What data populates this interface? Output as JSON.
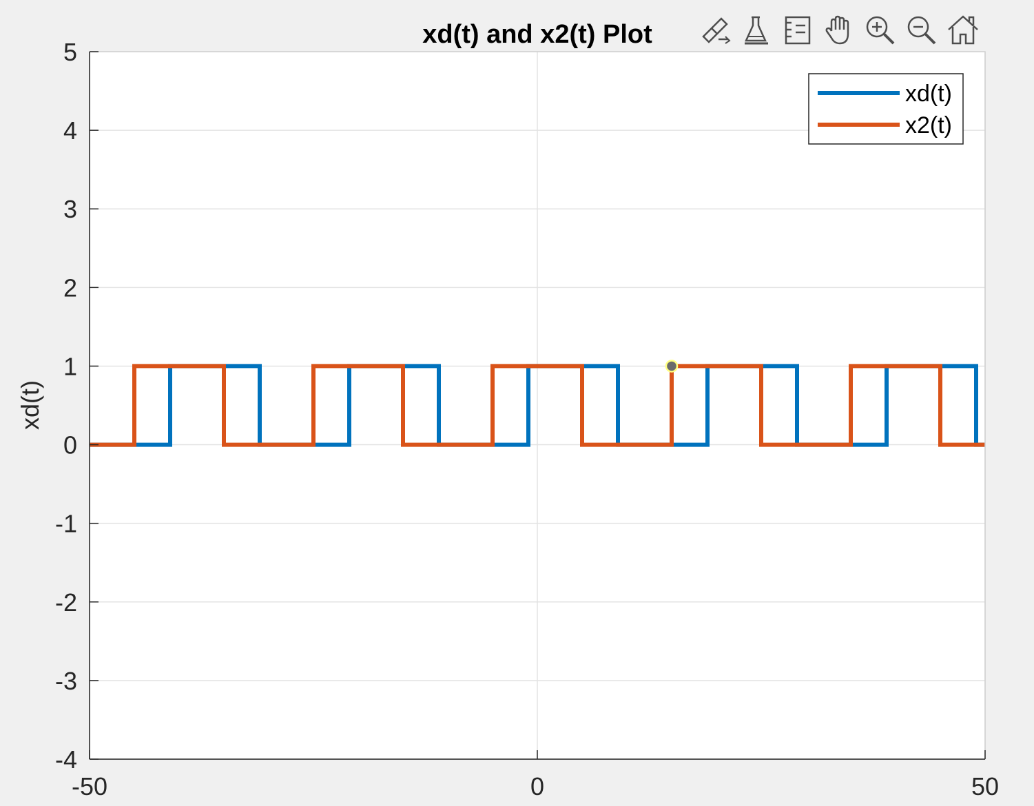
{
  "chart_data": {
    "type": "line",
    "title": "xd(t) and x2(t) Plot",
    "xlabel": "",
    "ylabel": "xd(t)",
    "xlim": [
      -50,
      50
    ],
    "ylim": [
      -4,
      5
    ],
    "x_ticks": [
      -50,
      0,
      50
    ],
    "y_ticks": [
      -4,
      -3,
      -2,
      -1,
      0,
      1,
      2,
      3,
      4,
      5
    ],
    "x_tick_labels": [
      "-50",
      "0",
      "50"
    ],
    "y_tick_labels": [
      "-4",
      "-3",
      "-2",
      "-1",
      "0",
      "1",
      "2",
      "3",
      "4",
      "5"
    ],
    "grid": true,
    "legend_position": "top-right",
    "series": [
      {
        "name": "xd(t)",
        "color": "#0072bd",
        "x": [
          -50,
          -41,
          -41,
          -31,
          -31,
          -21,
          -21,
          -11,
          -11,
          -1,
          -1,
          9,
          9,
          19,
          19,
          29,
          29,
          39,
          39,
          49,
          49,
          50
        ],
        "y": [
          0,
          0,
          1,
          1,
          0,
          0,
          1,
          1,
          0,
          0,
          1,
          1,
          0,
          0,
          1,
          1,
          0,
          0,
          1,
          1,
          0,
          0
        ]
      },
      {
        "name": "x2(t)",
        "color": "#d95319",
        "x": [
          -50,
          -45,
          -45,
          -35,
          -35,
          -25,
          -25,
          -15,
          -15,
          -5,
          -5,
          5,
          5,
          15,
          15,
          25,
          25,
          35,
          35,
          45,
          45,
          50
        ],
        "y": [
          0,
          0,
          1,
          1,
          0,
          0,
          1,
          1,
          0,
          0,
          1,
          1,
          0,
          0,
          1,
          1,
          0,
          0,
          1,
          1,
          0,
          0
        ]
      }
    ],
    "datatip": {
      "x": 15,
      "y": 1
    }
  },
  "toolbar": {
    "icons": [
      "brush-edit-icon",
      "data-cursor-icon",
      "legend-toggle-icon",
      "pan-hand-icon",
      "zoom-in-icon",
      "zoom-out-icon",
      "home-icon"
    ],
    "icon_color": "#4d4d4d"
  },
  "colors": {
    "figure_bg": "#f0f0f0",
    "axes_bg": "#ffffff",
    "grid": "#e3e3e3",
    "axis": "#262626",
    "datatip_fill": "#6b6b6b",
    "datatip_edge": "#ffff80"
  }
}
